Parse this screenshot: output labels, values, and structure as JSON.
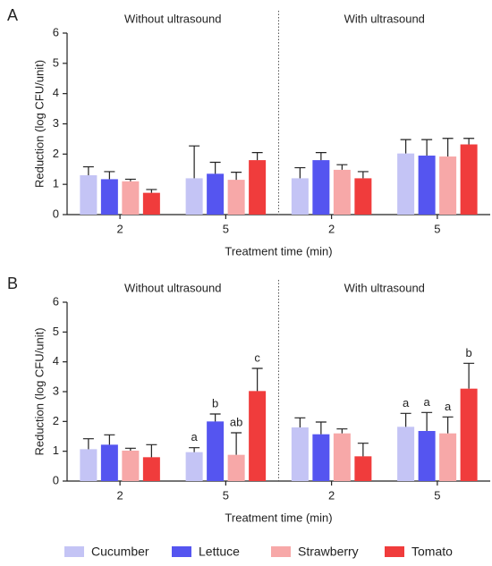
{
  "chart_data": [
    {
      "type": "bar",
      "panel_label": "A",
      "section_titles": [
        "Without ultrasound",
        "With ultrasound"
      ],
      "categories": [
        "2",
        "5",
        "2",
        "5"
      ],
      "x_label": "Treatment time (min)",
      "y_label": "Reduction (log CFU/unit)",
      "ylim": [
        0,
        6
      ],
      "yticks": [
        0,
        1,
        2,
        3,
        4,
        5,
        6
      ],
      "grid": false,
      "series": [
        {
          "name": "Cucumber",
          "color": "#c4c4f5",
          "values": [
            1.3,
            1.2,
            1.2,
            2.02
          ],
          "errors": [
            0.28,
            1.07,
            0.35,
            0.46
          ]
        },
        {
          "name": "Lettuce",
          "color": "#5555f0",
          "values": [
            1.17,
            1.35,
            1.8,
            1.95
          ],
          "errors": [
            0.25,
            0.38,
            0.25,
            0.53
          ]
        },
        {
          "name": "Strawberry",
          "color": "#f7a8a8",
          "values": [
            1.1,
            1.15,
            1.48,
            1.92
          ],
          "errors": [
            0.07,
            0.25,
            0.17,
            0.6
          ]
        },
        {
          "name": "Tomato",
          "color": "#f03c3c",
          "values": [
            0.72,
            1.8,
            1.2,
            2.32
          ],
          "errors": [
            0.11,
            0.25,
            0.22,
            0.2
          ]
        }
      ]
    },
    {
      "type": "bar",
      "panel_label": "B",
      "section_titles": [
        "Without ultrasound",
        "With ultrasound"
      ],
      "categories": [
        "2",
        "5",
        "2",
        "5"
      ],
      "x_label": "Treatment time (min)",
      "y_label": "Reduction (log CFU/unit)",
      "ylim": [
        0,
        6
      ],
      "yticks": [
        0,
        1,
        2,
        3,
        4,
        5,
        6
      ],
      "grid": false,
      "series": [
        {
          "color": "#c4c4f5",
          "values": [
            1.07,
            0.97,
            1.8,
            1.82
          ],
          "errors": [
            0.35,
            0.15,
            0.32,
            0.45
          ],
          "annotations": [
            null,
            "a",
            null,
            "a"
          ]
        },
        {
          "color": "#5555f0",
          "values": [
            1.22,
            2.0,
            1.57,
            1.68
          ],
          "errors": [
            0.33,
            0.25,
            0.41,
            0.62
          ],
          "annotations": [
            null,
            "b",
            null,
            "a"
          ]
        },
        {
          "color": "#f7a8a8",
          "values": [
            1.02,
            0.88,
            1.6,
            1.6
          ],
          "errors": [
            0.08,
            0.74,
            0.15,
            0.55
          ],
          "annotations": [
            null,
            "ab",
            null,
            "a"
          ]
        },
        {
          "color": "#f03c3c",
          "values": [
            0.8,
            3.02,
            0.83,
            3.1
          ],
          "errors": [
            0.42,
            0.76,
            0.44,
            0.85
          ],
          "annotations": [
            null,
            "c",
            null,
            "b"
          ]
        }
      ]
    }
  ]
}
